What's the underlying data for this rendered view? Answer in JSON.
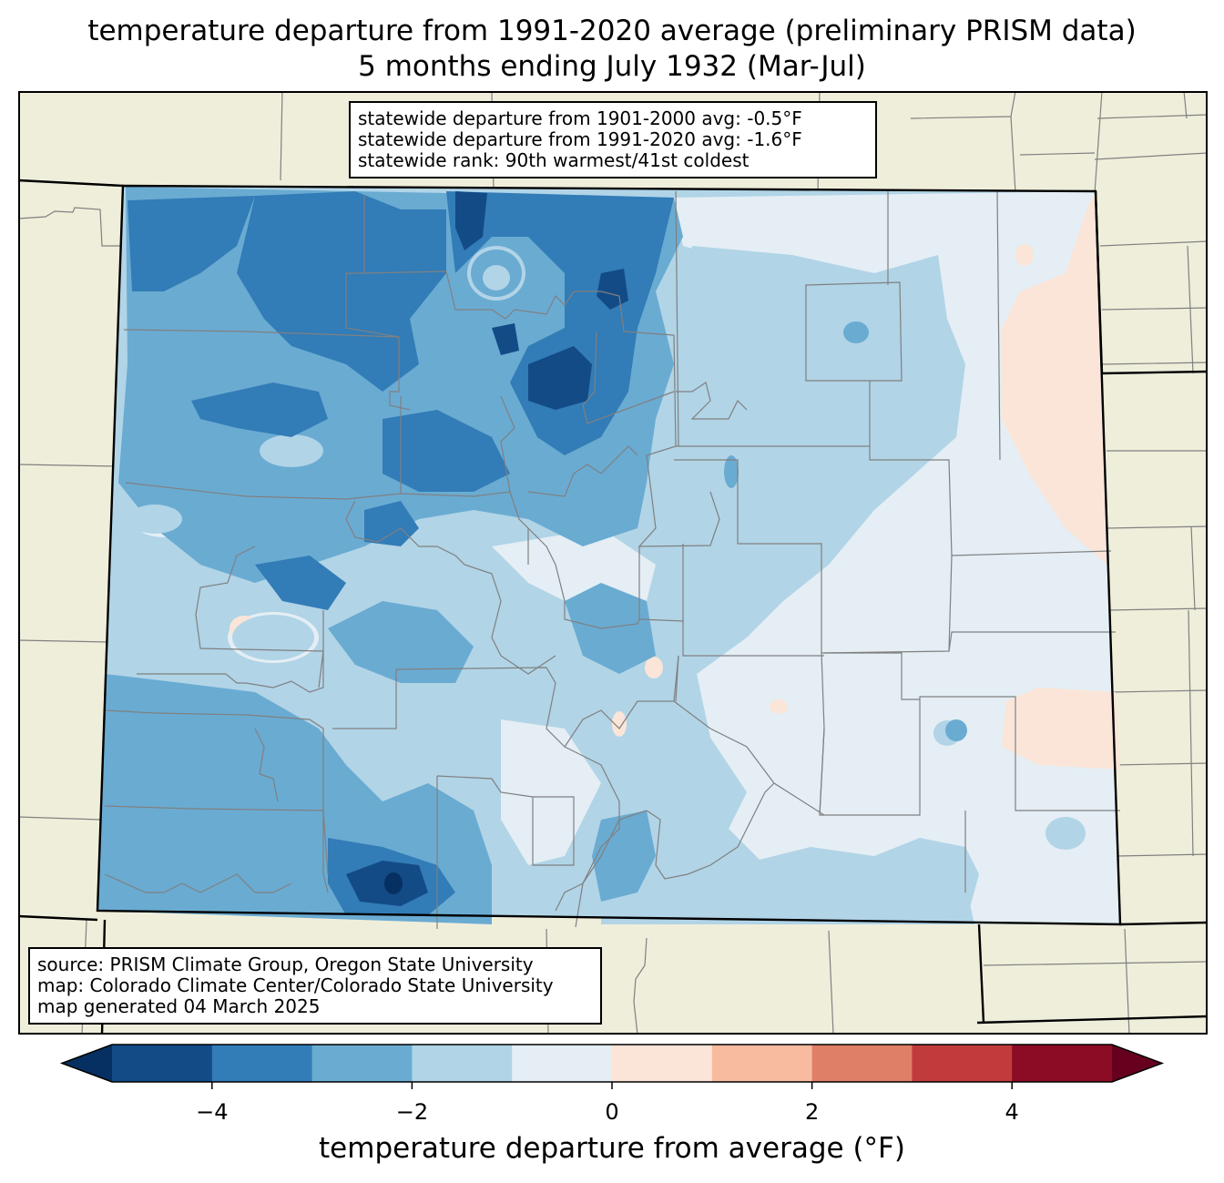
{
  "title": "temperature departure from 1991-2020 average (preliminary PRISM data)",
  "subtitle": "5 months ending July 1932 (Mar-Jul)",
  "stats": [
    "statewide departure from 1901-2000 avg: -0.5°F",
    "statewide departure from 1991-2020 avg: -1.6°F",
    "statewide rank: 90th warmest/41st coldest"
  ],
  "source": [
    "source: PRISM Climate Group, Oregon State University",
    "map: Colorado Climate Center/Colorado State University",
    "map generated 04 March 2025"
  ],
  "colorbar": {
    "label": "temperature departure from average (°F)",
    "ticks": [
      "−4",
      "−2",
      "0",
      "2",
      "4"
    ],
    "tick_values": [
      -4,
      -2,
      0,
      2,
      4
    ],
    "bounds": [
      -5,
      5
    ],
    "extend": "both",
    "bins": [
      {
        "from": -5,
        "to": -4,
        "color": "#134b87"
      },
      {
        "from": -4,
        "to": -3,
        "color": "#327cb7"
      },
      {
        "from": -3,
        "to": -2,
        "color": "#6aabd2"
      },
      {
        "from": -2,
        "to": -1,
        "color": "#b1d4e7"
      },
      {
        "from": -1,
        "to": 0,
        "color": "#e4eef4"
      },
      {
        "from": 0,
        "to": 1,
        "color": "#fbe5d8"
      },
      {
        "from": 1,
        "to": 2,
        "color": "#f8bba0"
      },
      {
        "from": 2,
        "to": 3,
        "color": "#e07f67"
      },
      {
        "from": 3,
        "to": 4,
        "color": "#c13b3c"
      },
      {
        "from": 4,
        "to": 5,
        "color": "#8c0c25"
      }
    ],
    "under_color": "#053061",
    "over_color": "#67001f"
  },
  "colors": {
    "land_outside": "#efeedb",
    "county_lines": "#808080",
    "state_lines": "#000000"
  }
}
